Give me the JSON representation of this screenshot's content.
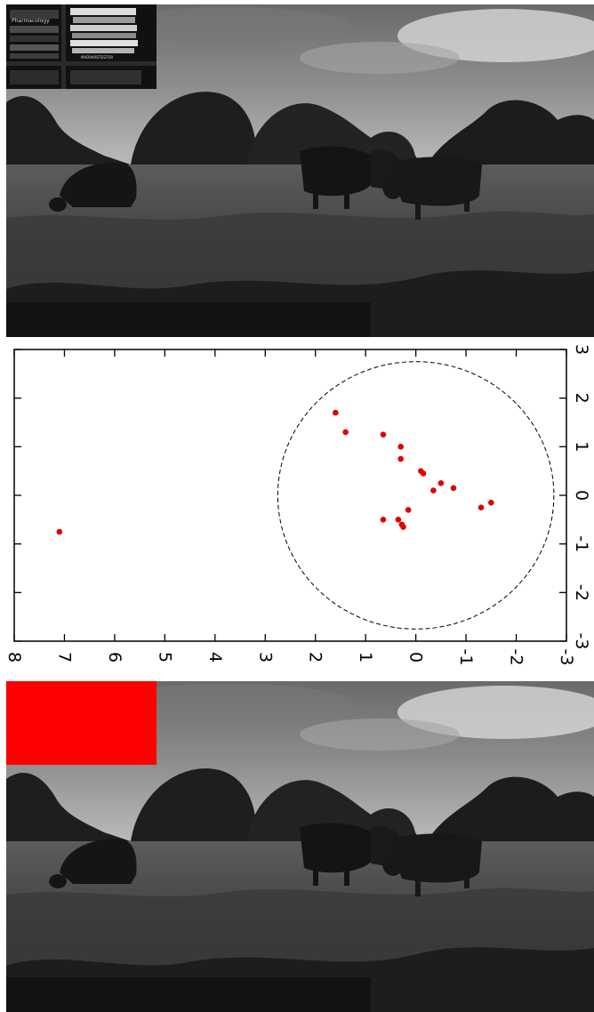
{
  "colors": {
    "inset_highlight": "#ff0000",
    "point_color": "#e00000",
    "circle_color": "#000000"
  },
  "top_photo": {
    "inset_book_text": [
      "Pharmacology",
      "MADVARDTESTOR"
    ]
  },
  "chart_data": {
    "type": "scatter",
    "orientation": "rotated 90 degrees clockwise",
    "x": [
      7.1,
      1.6,
      1.4,
      0.65,
      0.3,
      0.3,
      -0.1,
      -0.15,
      -0.5,
      -0.75,
      -1.3,
      -1.5,
      -0.35,
      0.15,
      0.65,
      0.35,
      0.28,
      0.25
    ],
    "y": [
      -0.75,
      1.7,
      1.3,
      1.25,
      1.0,
      0.75,
      0.5,
      0.45,
      0.25,
      0.15,
      -0.25,
      -0.15,
      0.1,
      -0.3,
      -0.5,
      -0.5,
      -0.6,
      -0.65
    ],
    "xlim": [
      -3,
      8
    ],
    "ylim": [
      -3,
      3
    ],
    "x_ticks": [
      "8",
      "7",
      "6",
      "5",
      "4",
      "3",
      "2",
      "1",
      "0",
      "-1",
      "-2",
      "-3"
    ],
    "x_tick_values": [
      8,
      7,
      6,
      5,
      4,
      3,
      2,
      1,
      0,
      -1,
      -2,
      -3
    ],
    "y_ticks": [
      "3",
      "2",
      "1",
      "0",
      "-1",
      "-2",
      "-3"
    ],
    "y_tick_values": [
      3,
      2,
      1,
      0,
      -1,
      -2,
      -3
    ],
    "circle": {
      "center": [
        0,
        0
      ],
      "radius": 2.75,
      "style": "dashed"
    },
    "grid": false,
    "title": "",
    "xlabel": "",
    "ylabel": ""
  }
}
